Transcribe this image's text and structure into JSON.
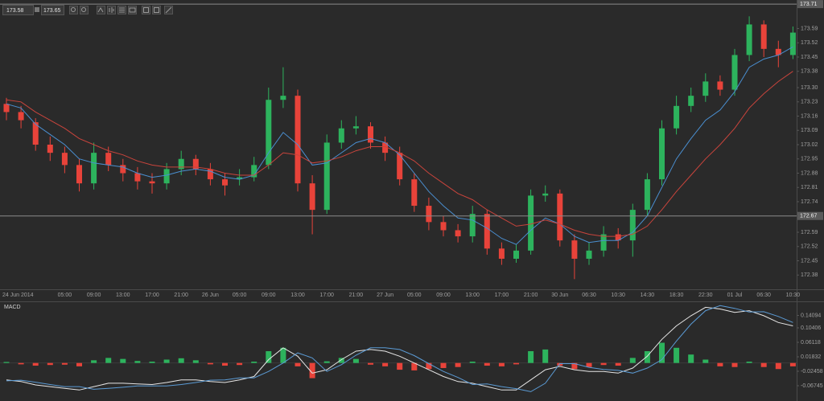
{
  "toolbar": {
    "bid": "173.58",
    "ask": "173.65"
  },
  "chart_data": [
    {
      "type": "candlestick",
      "categories": [
        "24 Jun 2014",
        null,
        null,
        null,
        "05:00",
        null,
        "09:00",
        null,
        "13:00",
        null,
        "17:00",
        null,
        "21:00",
        null,
        "26 Jun",
        null,
        "05:00",
        null,
        "09:00",
        null,
        "13:00",
        null,
        "17:00",
        null,
        "21:00",
        null,
        "27 Jun",
        null,
        "05:00",
        null,
        "09:00",
        null,
        "13:00",
        null,
        "17:00",
        null,
        "21:00",
        null,
        "30 Jun",
        null,
        "06:30",
        null,
        "10:30",
        null,
        "14:30",
        null,
        "18:30",
        null,
        "22:30",
        null,
        "01 Jul",
        null,
        "06:30",
        null,
        "10:30"
      ],
      "open": [
        173.22,
        173.18,
        173.13,
        173.02,
        172.98,
        172.92,
        172.83,
        172.98,
        172.92,
        172.88,
        172.84,
        172.83,
        172.9,
        172.95,
        172.9,
        172.85,
        172.85,
        172.86,
        172.92,
        173.24,
        173.26,
        172.83,
        172.7,
        173.03,
        173.1,
        173.11,
        173.03,
        172.98,
        172.85,
        172.72,
        172.64,
        172.6,
        172.57,
        172.68,
        172.51,
        172.46,
        172.5,
        172.77,
        172.78,
        172.55,
        172.46,
        172.5,
        172.58,
        172.55,
        172.7,
        172.85,
        173.1,
        173.21,
        173.26,
        173.33,
        173.29,
        173.46,
        173.61,
        173.49,
        173.46
      ],
      "high": [
        173.25,
        173.21,
        173.15,
        173.06,
        173.01,
        172.95,
        173.03,
        173.01,
        172.95,
        172.91,
        172.88,
        172.93,
        172.99,
        172.97,
        172.93,
        172.88,
        172.9,
        172.96,
        173.3,
        173.4,
        173.29,
        172.87,
        173.07,
        173.14,
        173.16,
        173.13,
        173.06,
        173.01,
        172.88,
        172.76,
        172.67,
        172.63,
        172.72,
        172.7,
        172.54,
        172.53,
        172.8,
        172.82,
        172.8,
        172.58,
        172.54,
        172.62,
        172.61,
        172.73,
        172.88,
        173.14,
        173.26,
        173.3,
        173.37,
        173.36,
        173.49,
        173.65,
        173.63,
        173.53,
        173.6
      ],
      "low": [
        173.14,
        173.1,
        172.99,
        172.94,
        172.88,
        172.79,
        172.8,
        172.89,
        172.84,
        172.8,
        172.78,
        172.8,
        172.87,
        172.87,
        172.82,
        172.77,
        172.82,
        172.84,
        172.9,
        173.2,
        172.79,
        172.58,
        172.68,
        173.0,
        173.07,
        173.0,
        172.94,
        172.82,
        172.69,
        172.6,
        172.57,
        172.54,
        172.54,
        172.48,
        172.43,
        172.44,
        172.48,
        172.74,
        172.52,
        172.36,
        172.43,
        172.47,
        172.51,
        172.47,
        172.67,
        172.82,
        173.07,
        173.18,
        173.23,
        173.26,
        173.26,
        173.43,
        173.45,
        173.4,
        173.44
      ],
      "close": [
        173.18,
        173.14,
        173.02,
        172.98,
        172.92,
        172.83,
        172.98,
        172.92,
        172.88,
        172.84,
        172.83,
        172.9,
        172.95,
        172.9,
        172.85,
        172.82,
        172.86,
        172.92,
        173.24,
        173.26,
        172.83,
        172.7,
        173.03,
        173.1,
        173.11,
        173.03,
        172.98,
        172.85,
        172.72,
        172.64,
        172.6,
        172.57,
        172.68,
        172.51,
        172.46,
        172.5,
        172.77,
        172.78,
        172.55,
        172.46,
        172.5,
        172.58,
        172.55,
        172.7,
        172.85,
        173.1,
        173.21,
        173.26,
        173.33,
        173.29,
        173.46,
        173.61,
        173.49,
        173.46,
        173.57
      ],
      "overlays": [
        {
          "color": "#4a8fd1",
          "values": [
            173.22,
            173.2,
            173.12,
            173.07,
            173.02,
            172.95,
            172.93,
            172.92,
            172.91,
            172.88,
            172.86,
            172.87,
            172.89,
            172.9,
            172.89,
            172.86,
            172.85,
            172.87,
            172.98,
            173.08,
            173.02,
            172.92,
            172.93,
            172.98,
            173.03,
            173.05,
            173.03,
            172.97,
            172.88,
            172.79,
            172.72,
            172.66,
            172.65,
            172.61,
            172.56,
            172.53,
            172.6,
            172.66,
            172.63,
            172.57,
            172.54,
            172.55,
            172.55,
            172.59,
            172.67,
            172.81,
            172.95,
            173.05,
            173.14,
            173.19,
            173.28,
            173.4,
            173.44,
            173.46,
            173.5
          ]
        },
        {
          "color": "#c9443c",
          "values": [
            173.24,
            173.23,
            173.18,
            173.14,
            173.1,
            173.05,
            173.02,
            172.99,
            172.97,
            172.94,
            172.92,
            172.91,
            172.91,
            172.91,
            172.9,
            172.88,
            172.87,
            172.87,
            172.92,
            172.98,
            172.97,
            172.93,
            172.94,
            172.96,
            172.99,
            173.01,
            173.01,
            172.98,
            172.94,
            172.88,
            172.83,
            172.78,
            172.75,
            172.7,
            172.66,
            172.62,
            172.63,
            172.65,
            172.63,
            172.6,
            172.58,
            172.57,
            172.57,
            172.58,
            172.62,
            172.7,
            172.79,
            172.87,
            172.95,
            173.02,
            173.1,
            173.2,
            173.27,
            173.33,
            173.38
          ]
        }
      ],
      "up_color": "#2db35d",
      "down_color": "#e8433a",
      "ylim": [
        172.31,
        173.73
      ],
      "yticks": [
        173.59,
        173.52,
        173.45,
        173.38,
        {
          "value": 173.3,
          "label": "173.30"
        },
        173.23,
        173.16,
        173.09,
        173.02,
        172.95,
        172.88,
        172.81,
        172.74,
        172.59,
        172.52,
        172.45,
        172.38
      ],
      "price_lines": [
        173.71,
        172.67
      ],
      "grid": false
    },
    {
      "type": "macd",
      "title": "MACD",
      "histogram": [
        0.003,
        -0.004,
        -0.008,
        -0.006,
        -0.005,
        -0.01,
        0.008,
        0.015,
        0.012,
        0.006,
        0.004,
        0.01,
        0.014,
        0.008,
        -0.004,
        -0.008,
        -0.006,
        0.004,
        0.035,
        0.045,
        -0.01,
        -0.045,
        0.005,
        0.015,
        0.012,
        -0.005,
        -0.01,
        -0.02,
        -0.022,
        -0.018,
        -0.015,
        -0.012,
        0.004,
        -0.008,
        -0.01,
        -0.004,
        0.035,
        0.04,
        -0.008,
        -0.018,
        -0.012,
        -0.006,
        -0.008,
        0.015,
        0.035,
        0.06,
        0.045,
        0.025,
        0.01,
        -0.01,
        -0.012,
        0.004,
        -0.012,
        -0.018,
        -0.01
      ],
      "lines": [
        {
          "color": "#e6e6e6",
          "values": [
            -0.05,
            -0.055,
            -0.065,
            -0.07,
            -0.075,
            -0.08,
            -0.07,
            -0.06,
            -0.06,
            -0.062,
            -0.064,
            -0.058,
            -0.05,
            -0.05,
            -0.055,
            -0.058,
            -0.05,
            -0.04,
            0.01,
            0.045,
            0.02,
            -0.03,
            -0.02,
            0.01,
            0.035,
            0.04,
            0.035,
            0.02,
            0,
            -0.02,
            -0.04,
            -0.055,
            -0.06,
            -0.07,
            -0.08,
            -0.08,
            -0.05,
            -0.02,
            -0.01,
            -0.02,
            -0.025,
            -0.025,
            -0.03,
            -0.015,
            0.02,
            0.07,
            0.11,
            0.14,
            0.165,
            0.16,
            0.15,
            0.155,
            0.14,
            0.12,
            0.11
          ]
        },
        {
          "color": "#5b9bd5",
          "values": [
            -0.053,
            -0.051,
            -0.057,
            -0.064,
            -0.07,
            -0.07,
            -0.078,
            -0.075,
            -0.072,
            -0.068,
            -0.068,
            -0.068,
            -0.064,
            -0.058,
            -0.051,
            -0.05,
            -0.044,
            -0.044,
            -0.025,
            0,
            0.03,
            0.015,
            -0.025,
            -0.005,
            0.023,
            0.045,
            0.045,
            0.04,
            0.022,
            -0.002,
            -0.025,
            -0.043,
            -0.064,
            -0.062,
            -0.07,
            -0.076,
            -0.085,
            -0.06,
            -0.002,
            -0.002,
            -0.013,
            -0.019,
            -0.022,
            -0.03,
            -0.015,
            0.01,
            0.065,
            0.115,
            0.155,
            0.17,
            0.162,
            0.151,
            0.152,
            0.138,
            0.12
          ]
        }
      ],
      "up_color": "#2db35d",
      "down_color": "#e8433a",
      "ylim": [
        -0.1032,
        0.1827
      ],
      "yticks": [
        0.14094,
        0.10406,
        0.06118,
        0.01832,
        -0.02458,
        -0.06745
      ],
      "grid": false
    }
  ]
}
